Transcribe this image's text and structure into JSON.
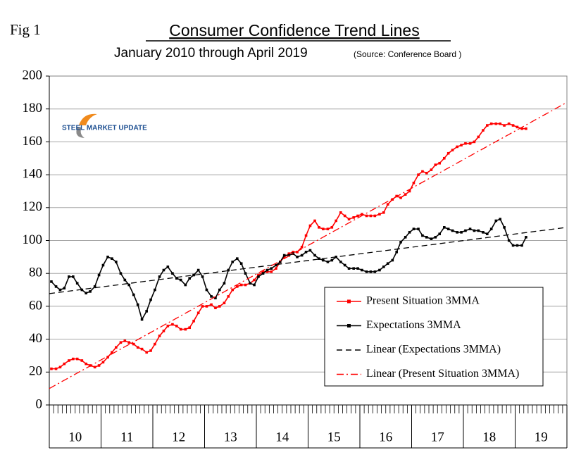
{
  "chart_data": {
    "type": "line",
    "figure_label": "Fig 1",
    "title": "Consumer Confidence Trend Lines",
    "subtitle": "January 2010 through April 2019",
    "source": "(Source: Conference Board )",
    "logo_text": "STEEL MARKET UPDATE",
    "xlim": [
      10,
      20
    ],
    "xticks": [
      {
        "value": 10.5,
        "label": "10"
      },
      {
        "value": 11.5,
        "label": "11"
      },
      {
        "value": 12.5,
        "label": "12"
      },
      {
        "value": 13.5,
        "label": "13"
      },
      {
        "value": 14.5,
        "label": "14"
      },
      {
        "value": 15.5,
        "label": "15"
      },
      {
        "value": 16.5,
        "label": "16"
      },
      {
        "value": 17.5,
        "label": "17"
      },
      {
        "value": 18.5,
        "label": "18"
      },
      {
        "value": 19.5,
        "label": "19"
      }
    ],
    "ylim": [
      0,
      200
    ],
    "yticks": [
      0,
      20,
      40,
      60,
      80,
      100,
      120,
      140,
      160,
      180,
      200
    ],
    "grid": true,
    "x": [
      10.04,
      10.13,
      10.21,
      10.29,
      10.38,
      10.46,
      10.54,
      10.63,
      10.71,
      10.79,
      10.88,
      10.96,
      11.04,
      11.13,
      11.21,
      11.29,
      11.38,
      11.46,
      11.54,
      11.63,
      11.71,
      11.79,
      11.88,
      11.96,
      12.04,
      12.13,
      12.21,
      12.29,
      12.38,
      12.46,
      12.54,
      12.63,
      12.71,
      12.79,
      12.88,
      12.96,
      13.04,
      13.13,
      13.21,
      13.29,
      13.38,
      13.46,
      13.54,
      13.63,
      13.71,
      13.79,
      13.88,
      13.96,
      14.04,
      14.13,
      14.21,
      14.29,
      14.38,
      14.46,
      14.54,
      14.63,
      14.71,
      14.79,
      14.88,
      14.96,
      15.04,
      15.13,
      15.21,
      15.29,
      15.38,
      15.46,
      15.54,
      15.63,
      15.71,
      15.79,
      15.88,
      15.96,
      16.04,
      16.13,
      16.21,
      16.29,
      16.38,
      16.46,
      16.54,
      16.63,
      16.71,
      16.79,
      16.88,
      16.96,
      17.04,
      17.13,
      17.21,
      17.29,
      17.38,
      17.46,
      17.54,
      17.63,
      17.71,
      17.79,
      17.88,
      17.96,
      18.04,
      18.13,
      18.21,
      18.29,
      18.38,
      18.46,
      18.54,
      18.63,
      18.71,
      18.79,
      18.88,
      18.96,
      19.04,
      19.13,
      19.21
    ],
    "series": [
      {
        "name": "Present Situation 3MMA",
        "color": "#ff0000",
        "markers": true,
        "line_style": "solid",
        "values": [
          22,
          22,
          23,
          25,
          27,
          28,
          28,
          27,
          25,
          24,
          23,
          24,
          26,
          29,
          32,
          35,
          38,
          39,
          38,
          37,
          35,
          34,
          32,
          33,
          37,
          42,
          45,
          48,
          49,
          48,
          46,
          46,
          47,
          51,
          56,
          60,
          60,
          61,
          59,
          60,
          62,
          66,
          70,
          72,
          73,
          73,
          74,
          76,
          79,
          81,
          81,
          81,
          83,
          87,
          90,
          92,
          93,
          93,
          96,
          103,
          109,
          112,
          108,
          107,
          107,
          108,
          112,
          117,
          115,
          113,
          114,
          115,
          116,
          115,
          115,
          115,
          116,
          117,
          122,
          125,
          127,
          126,
          128,
          130,
          135,
          140,
          142,
          141,
          143,
          146,
          147,
          150,
          153,
          155,
          157,
          158,
          159,
          159,
          160,
          163,
          167,
          170,
          171,
          171,
          171,
          170,
          171,
          170,
          169,
          168,
          168
        ]
      },
      {
        "name": "Expectations 3MMA",
        "color": "#000000",
        "markers": true,
        "line_style": "solid",
        "values": [
          75,
          72,
          70,
          71,
          78,
          78,
          74,
          70,
          68,
          69,
          72,
          79,
          85,
          90,
          89,
          87,
          80,
          76,
          73,
          67,
          61,
          52,
          57,
          64,
          70,
          78,
          82,
          84,
          80,
          77,
          76,
          73,
          77,
          79,
          82,
          78,
          70,
          66,
          65,
          70,
          74,
          82,
          87,
          89,
          86,
          80,
          74,
          73,
          78,
          80,
          82,
          83,
          85,
          87,
          91,
          91,
          92,
          90,
          91,
          93,
          94,
          91,
          89,
          88,
          87,
          88,
          90,
          87,
          85,
          83,
          83,
          83,
          82,
          81,
          81,
          81,
          82,
          84,
          86,
          88,
          93,
          99,
          102,
          105,
          107,
          107,
          103,
          102,
          101,
          102,
          104,
          108,
          107,
          106,
          105,
          105,
          106,
          107,
          106,
          106,
          105,
          104,
          107,
          112,
          113,
          108,
          100,
          97,
          97,
          97,
          102
        ]
      },
      {
        "name": "Linear (Expectations 3MMA)",
        "color": "#000000",
        "markers": false,
        "line_style": "dash",
        "x": [
          10,
          20
        ],
        "values": [
          67.7,
          108
        ]
      },
      {
        "name": "Linear (Present Situation 3MMA)",
        "color": "#ff0000",
        "markers": false,
        "line_style": "dash-dot",
        "x": [
          10,
          20
        ],
        "values": [
          10,
          184
        ]
      }
    ]
  }
}
